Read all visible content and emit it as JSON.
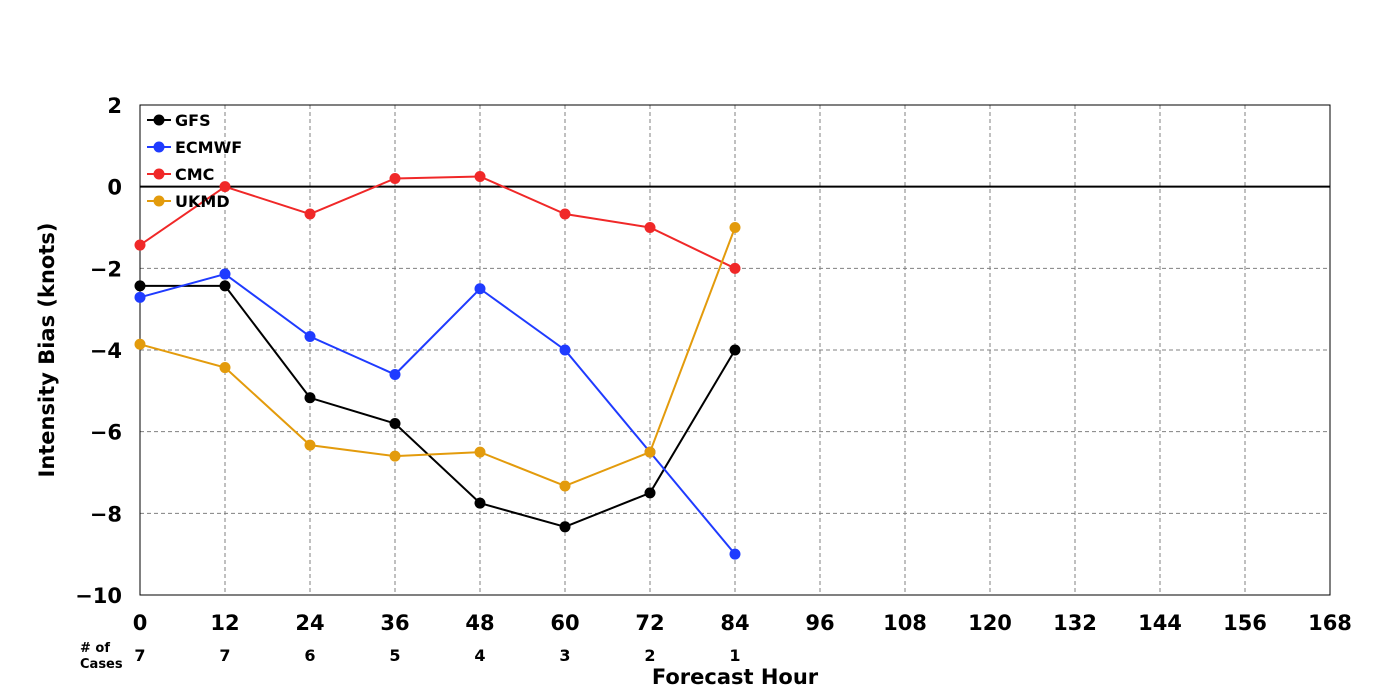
{
  "chart_data": {
    "type": "line",
    "xlabel": "Forecast Hour",
    "ylabel": "Intensity Bias (knots)",
    "xlim": [
      0,
      168
    ],
    "ylim": [
      -10,
      2
    ],
    "x_ticks": [
      0,
      12,
      24,
      36,
      48,
      60,
      72,
      84,
      96,
      108,
      120,
      132,
      144,
      156,
      168
    ],
    "y_ticks": [
      2,
      0,
      -2,
      -4,
      -6,
      -8,
      -10
    ],
    "y_tick_labels": [
      "2",
      "0",
      "−2",
      "−4",
      "−6",
      "−8",
      "−10"
    ],
    "grid": true,
    "zero_line": 0,
    "legend_position": "top-left",
    "cases_label": "# of\nCases",
    "cases_label_lines": [
      "# of",
      "Cases"
    ],
    "cases": [
      {
        "x": 0,
        "n": "7"
      },
      {
        "x": 12,
        "n": "7"
      },
      {
        "x": 24,
        "n": "6"
      },
      {
        "x": 36,
        "n": "5"
      },
      {
        "x": 48,
        "n": "4"
      },
      {
        "x": 60,
        "n": "3"
      },
      {
        "x": 72,
        "n": "2"
      },
      {
        "x": 84,
        "n": "1"
      }
    ],
    "x": [
      0,
      12,
      24,
      36,
      48,
      60,
      72,
      84
    ],
    "series": [
      {
        "name": "GFS",
        "color": "#000000",
        "values": [
          -2.43,
          -2.43,
          -5.17,
          -5.8,
          -7.75,
          -8.33,
          -7.5,
          -4.0
        ]
      },
      {
        "name": "ECMWF",
        "color": "#1f3bff",
        "values": [
          -2.71,
          -2.14,
          -3.67,
          -4.6,
          -2.5,
          -4.0,
          -6.5,
          -9.0
        ]
      },
      {
        "name": "CMC",
        "color": "#f02828",
        "values": [
          -1.43,
          0.0,
          -0.67,
          0.2,
          0.25,
          -0.67,
          -1.0,
          -2.0
        ]
      },
      {
        "name": "UKMD",
        "color": "#e39b0c",
        "values": [
          -3.86,
          -4.43,
          -6.33,
          -6.6,
          -6.5,
          -7.33,
          -6.5,
          -1.0
        ]
      }
    ]
  }
}
